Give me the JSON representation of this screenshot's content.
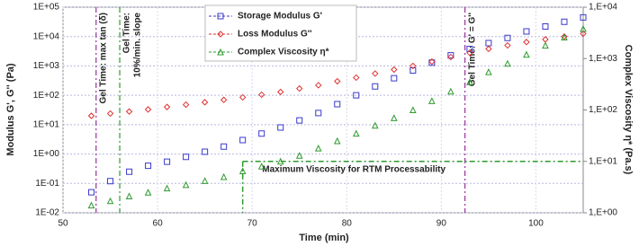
{
  "chart_data": {
    "type": "scatter",
    "xlabel": "Time (min)",
    "ylabel": "Modulus G', G'' (Pa)",
    "y2label": "Complex Viscosity  η* (Pa.s)",
    "xlim": [
      50,
      105
    ],
    "xticks": [
      50,
      60,
      70,
      80,
      90,
      100
    ],
    "ylim": [
      0.01,
      100000
    ],
    "yticks": [
      {
        "value": 0.01,
        "label": "1E-02"
      },
      {
        "value": 0.1,
        "label": "1E-01"
      },
      {
        "value": 1,
        "label": "1E+00"
      },
      {
        "value": 10,
        "label": "1E+01"
      },
      {
        "value": 100,
        "label": "1E+02"
      },
      {
        "value": 1000,
        "label": "1E+03"
      },
      {
        "value": 10000,
        "label": "1E+04"
      },
      {
        "value": 100000,
        "label": "1E+05"
      }
    ],
    "y2lim": [
      1,
      10000
    ],
    "y2ticks": [
      {
        "value": 1,
        "label": "1,E+00"
      },
      {
        "value": 10,
        "label": "1,E+01"
      },
      {
        "value": 100,
        "label": "1,E+02"
      },
      {
        "value": 1000,
        "label": "1,E+03"
      },
      {
        "value": 10000,
        "label": "1,E+04"
      }
    ],
    "log_scale": true,
    "grid": true,
    "legend": "top",
    "x": [
      53,
      55,
      57,
      59,
      61,
      63,
      65,
      67,
      69,
      71,
      73,
      75,
      77,
      79,
      81,
      83,
      85,
      87,
      89,
      91,
      93,
      95,
      97,
      99,
      101,
      103,
      105
    ],
    "series": [
      {
        "name": "Storage Modulus G'",
        "color": "#3a3acc",
        "marker": "square",
        "values": [
          0.05,
          0.12,
          0.25,
          0.4,
          0.55,
          0.8,
          1.2,
          1.8,
          3,
          5,
          8,
          14,
          25,
          50,
          100,
          200,
          380,
          700,
          1300,
          2300,
          3800,
          6000,
          9000,
          15000,
          22000,
          32000,
          45000
        ]
      },
      {
        "name": "Loss Modulus G''",
        "color": "#e03030",
        "marker": "diamond",
        "values": [
          20,
          24,
          28,
          33,
          40,
          48,
          58,
          70,
          85,
          105,
          130,
          170,
          220,
          300,
          400,
          550,
          750,
          1000,
          1400,
          2000,
          2800,
          3800,
          5000,
          6500,
          8000,
          10000,
          12500
        ]
      },
      {
        "name": "Complex Viscosity  η*",
        "color": "#2e9a2e",
        "marker": "triangle",
        "axis": "y2",
        "values": [
          1.4,
          1.7,
          2.1,
          2.5,
          3,
          3.5,
          4.2,
          5,
          6.5,
          8,
          10,
          13,
          18,
          25,
          35,
          50,
          70,
          100,
          150,
          230,
          350,
          550,
          800,
          1200,
          1800,
          2600,
          3800
        ]
      }
    ],
    "vlines": [
      {
        "x": 53.5,
        "color": "#9b30a0",
        "lines": [
          "Gel Time: max tan (δ)"
        ]
      },
      {
        "x": 56,
        "color": "#2e9a2e",
        "lines": [
          "Gel Time:",
          "10%/min. slope"
        ]
      },
      {
        "x": 92.5,
        "color": "#9b30a0",
        "lines": [
          "Gel Time: G' = G''"
        ]
      }
    ],
    "threshold": {
      "x": 69,
      "y": 10,
      "axis": "y2",
      "color": "#2e9a2e",
      "text": "Maximum Viscosity for RTM Processability"
    }
  }
}
